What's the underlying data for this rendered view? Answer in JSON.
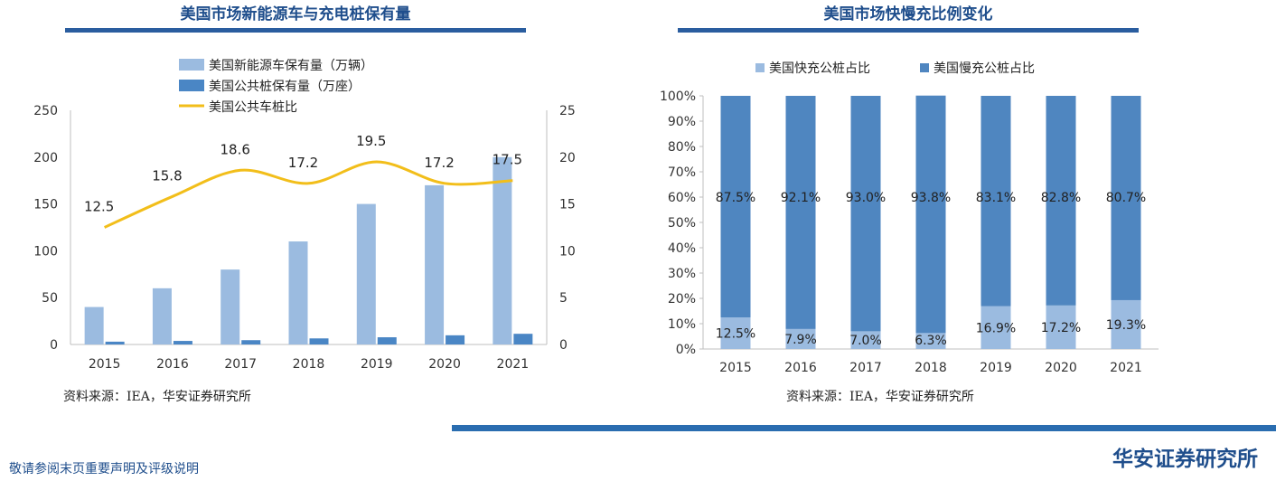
{
  "left_panel": {
    "title": "美国市场新能源车与充电桩保有量",
    "source": "资料来源：IEA，华安证券研究所"
  },
  "right_panel": {
    "title": "美国市场快慢充比例变化",
    "source": "资料来源：IEA，华安证券研究所"
  },
  "footer": {
    "disclaimer": "敬请参阅末页重要声明及评级说明",
    "brand": "华安证券研究所"
  },
  "colors": {
    "title": "#1f4e8c",
    "ev_bar": "#9bbbe0",
    "charger_bar": "#4a86c5",
    "ratio_line": "#f2be1a",
    "fast": "#9bbbe0",
    "slow": "#4f86c0",
    "rule": "#2a5d9f"
  },
  "chart_data": [
    {
      "type": "bar",
      "categories": [
        "2015",
        "2016",
        "2017",
        "2018",
        "2019",
        "2020",
        "2021"
      ],
      "series": [
        {
          "name": "美国新能源车保有量（万辆）",
          "axis": "left",
          "values": [
            40,
            60,
            80,
            110,
            150,
            170,
            200
          ]
        },
        {
          "name": "美国公共桩保有量（万座）",
          "axis": "left",
          "values": [
            3,
            3.8,
            4.6,
            6.5,
            7.7,
            9.8,
            11.4
          ]
        },
        {
          "name": "美国公共车桩比",
          "type": "line",
          "axis": "right",
          "values": [
            12.5,
            15.8,
            18.6,
            17.2,
            19.5,
            17.2,
            17.5
          ],
          "labels": [
            "12.5",
            "15.8",
            "18.6",
            "17.2",
            "19.5",
            "17.2",
            "17.5"
          ]
        }
      ],
      "ylim": [
        0,
        250
      ],
      "yticks": [
        "0",
        "50",
        "100",
        "150",
        "200",
        "250"
      ],
      "y2lim": [
        0,
        25
      ],
      "y2ticks": [
        "0",
        "5",
        "10",
        "15",
        "20",
        "25"
      ],
      "legend_position": "top"
    },
    {
      "type": "bar",
      "stacked": true,
      "categories": [
        "2015",
        "2016",
        "2017",
        "2018",
        "2019",
        "2020",
        "2021"
      ],
      "series": [
        {
          "name": "美国快充公桩占比",
          "values": [
            12.5,
            7.9,
            7.0,
            6.3,
            16.9,
            17.2,
            19.3
          ],
          "labels": [
            "12.5%",
            "7.9%",
            "7.0%",
            "6.3%",
            "16.9%",
            "17.2%",
            "19.3%"
          ]
        },
        {
          "name": "美国慢充公桩占比",
          "values": [
            87.5,
            92.1,
            93.0,
            93.8,
            83.1,
            82.8,
            80.7
          ],
          "labels": [
            "87.5%",
            "92.1%",
            "93.0%",
            "93.8%",
            "83.1%",
            "82.8%",
            "80.7%"
          ]
        }
      ],
      "ylim": [
        0,
        100
      ],
      "yticks": [
        "0%",
        "10%",
        "20%",
        "30%",
        "40%",
        "50%",
        "60%",
        "70%",
        "80%",
        "90%",
        "100%"
      ],
      "legend_position": "top"
    }
  ]
}
